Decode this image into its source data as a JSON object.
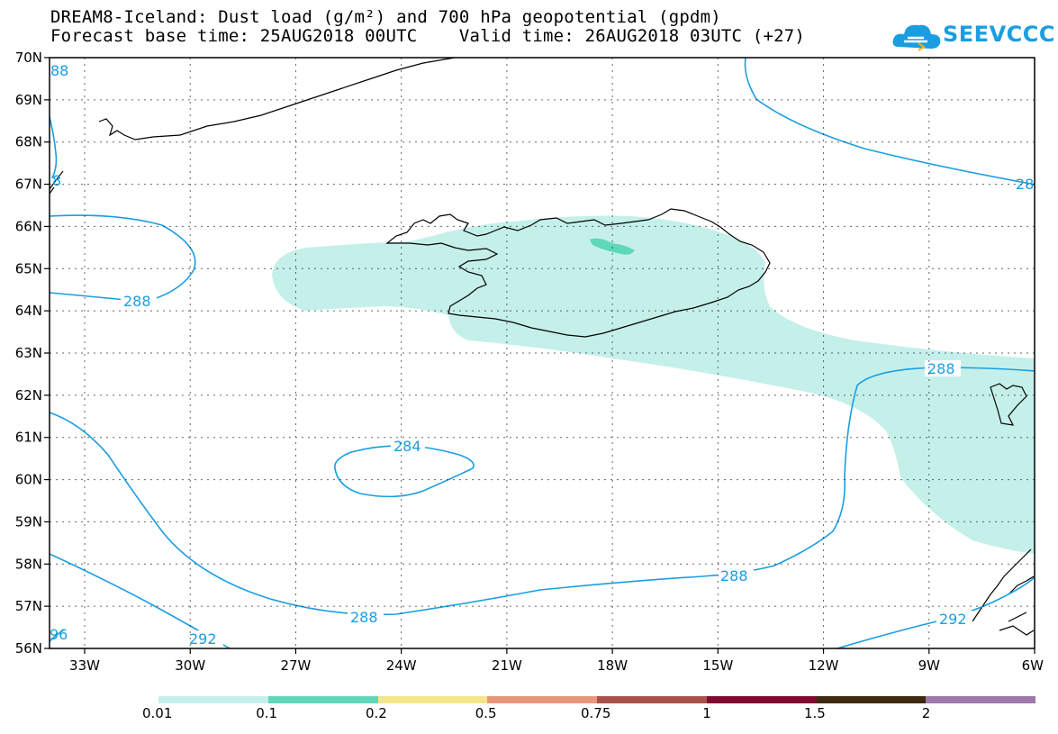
{
  "header": {
    "title_line1": "DREAM8-Iceland: Dust load (g/m²) and 700 hPa geopotential (gpdm)",
    "title_line2": "Forecast base time: 25AUG2018 00UTC    Valid time: 26AUG2018 03UTC (+27)"
  },
  "logo": {
    "text": "SEEVCCC",
    "icon": "cloud-logo-icon",
    "color": "#1a9ee0"
  },
  "map": {
    "lat_labels": [
      "70N",
      "69N",
      "68N",
      "67N",
      "66N",
      "65N",
      "64N",
      "63N",
      "62N",
      "61N",
      "60N",
      "59N",
      "58N",
      "57N",
      "56N"
    ],
    "lon_labels": [
      "33W",
      "30W",
      "27W",
      "24W",
      "21W",
      "18W",
      "15W",
      "12W",
      "9W",
      "6W"
    ],
    "contour_labels": {
      "c288_a": "288",
      "c288_b": "288",
      "c288_c": "288",
      "c288_d": "288",
      "c284": "284",
      "c292_a": "292",
      "c292_b": "292",
      "c288_top_left": "88",
      "c288_top_right": "28",
      "c296": "96",
      "c288_left2": "8"
    },
    "contour_color": "#1a9ee0",
    "dust_color_low": "#c5f0ea",
    "dust_color_mid": "#5ed8b8"
  },
  "colorbar": {
    "labels": [
      "0.01",
      "0.1",
      "0.2",
      "0.5",
      "0.75",
      "1",
      "1.5",
      "2"
    ],
    "colors": [
      "#c5f0ea",
      "#5ed8b8",
      "#f5e68a",
      "#e8987a",
      "#a8524a",
      "#800a2e",
      "#3d2a10",
      "#9e78a8"
    ]
  }
}
